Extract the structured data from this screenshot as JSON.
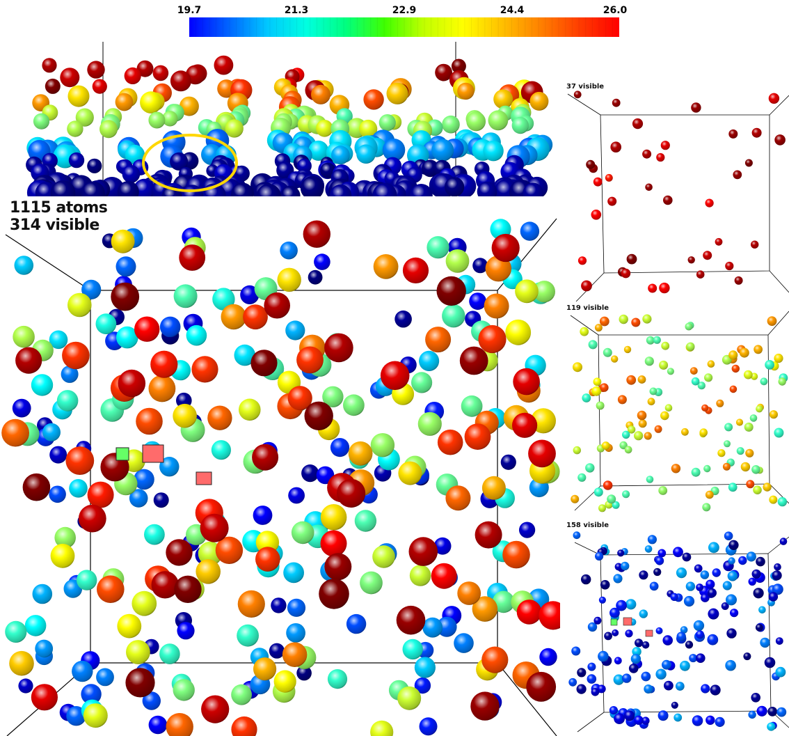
{
  "colorbar": {
    "tick_labels": [
      "19.7",
      "21.3",
      "22.9",
      "24.4",
      "26.0"
    ],
    "min": 19.7,
    "max": 26.0,
    "colormap": "jet",
    "gradient_colors": [
      "#0000ff",
      "#0064ff",
      "#00c8ff",
      "#00ffe0",
      "#00ff80",
      "#40ff00",
      "#c0ff00",
      "#ffff00",
      "#ffc000",
      "#ff8000",
      "#ff3c00",
      "#ff0000"
    ]
  },
  "main_view": {
    "total_atoms_text": "1115 atoms",
    "visible_text": "314 visible"
  },
  "layer_views": [
    {
      "visible_text": "37 visible"
    },
    {
      "visible_text": "119 visible"
    },
    {
      "visible_text": "158 visible"
    }
  ],
  "highlight": {
    "shape": "ellipse",
    "color": "#ffd700"
  },
  "markers": {
    "green": "#66ff66",
    "red": "#ff6b6b"
  },
  "colors": {
    "background": "#ffffff",
    "box_edges": "#000000"
  }
}
